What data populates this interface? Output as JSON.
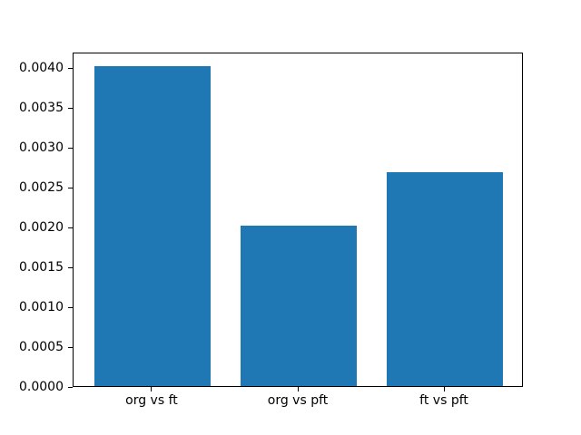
{
  "chart_data": {
    "type": "bar",
    "categories": [
      "org vs ft",
      "org vs pft",
      "ft vs pft"
    ],
    "values": [
      0.00401,
      0.00201,
      0.00268
    ],
    "xlabel": "",
    "ylabel": "",
    "xlim": [
      -0.54,
      2.54
    ],
    "ylim": [
      0,
      0.0042
    ],
    "bar_width": 0.8,
    "ytick_values": [
      0.0,
      0.0005,
      0.001,
      0.0015,
      0.002,
      0.0025,
      0.003,
      0.0035,
      0.004
    ],
    "ytick_labels": [
      "0.0000",
      "0.0005",
      "0.0010",
      "0.0015",
      "0.0020",
      "0.0025",
      "0.0030",
      "0.0035",
      "0.0040"
    ],
    "grid": false,
    "legend": null,
    "bar_color": "#1f77b4",
    "spine_color": "#000000",
    "text_color": "#000000",
    "background_color": "#ffffff"
  }
}
